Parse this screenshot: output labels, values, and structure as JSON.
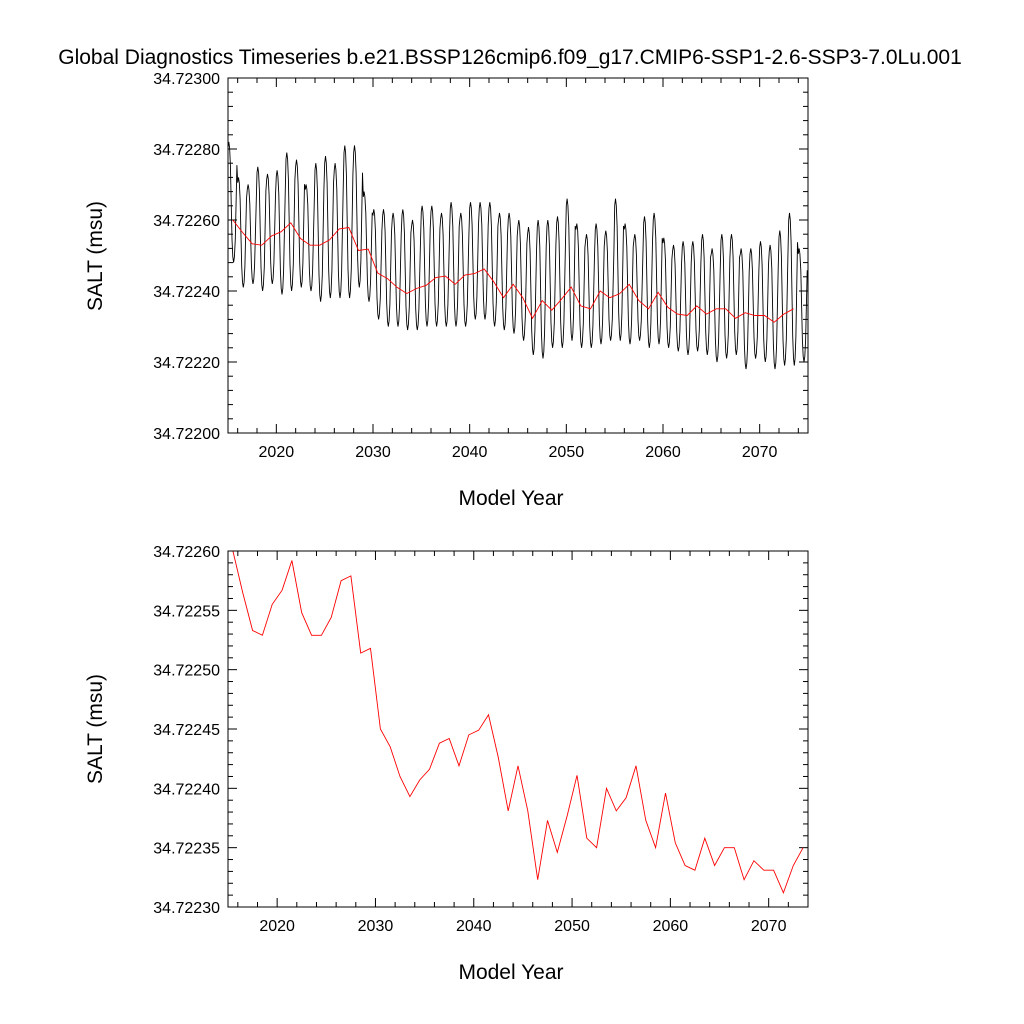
{
  "figure": {
    "title": "Global Diagnostics Timeseries b.e21.BSSP126cmip6.f09_g17.CMIP6-SSP1-2.6-SSP3-7.0Lu.001"
  },
  "colors": {
    "monthly": "#000000",
    "annual": "#ff0000",
    "axis": "#000000"
  },
  "chart_data": [
    {
      "type": "line",
      "title": "Global Diagnostics Timeseries b.e21.BSSP126cmip6.f09_g17.CMIP6-SSP1-2.6-SSP3-7.0Lu.001",
      "xlabel": "Model Year",
      "ylabel": "SALT (msu)",
      "xlim": [
        2015,
        2075
      ],
      "ylim": [
        34.722,
        34.723
      ],
      "x_ticks": [
        "2020",
        "2030",
        "2040",
        "2050",
        "2060",
        "2070"
      ],
      "y_ticks": [
        "34.72200",
        "34.72220",
        "34.72240",
        "34.72260",
        "34.72280",
        "34.72300"
      ],
      "grid": false,
      "series": [
        {
          "color": "#000000",
          "style": "monthly seasonal cycle",
          "x": [
            2015.0,
            2016.0,
            2017.0,
            2018.0,
            2019.0,
            2020.0,
            2021.0,
            2022.0,
            2023.0,
            2024.0,
            2025.0,
            2026.0,
            2027.0,
            2028.0,
            2029.0,
            2030.0,
            2031.0,
            2032.0,
            2033.0,
            2034.0,
            2035.0,
            2036.0,
            2037.0,
            2038.0,
            2039.0,
            2040.0,
            2041.0,
            2042.0,
            2043.0,
            2044.0,
            2045.0,
            2046.0,
            2047.0,
            2048.0,
            2049.0,
            2050.0,
            2051.0,
            2052.0,
            2053.0,
            2054.0,
            2055.0,
            2056.0,
            2057.0,
            2058.0,
            2059.0,
            2060.0,
            2061.0,
            2062.0,
            2063.0,
            2064.0,
            2065.0,
            2066.0,
            2067.0,
            2068.0,
            2069.0,
            2070.0,
            2071.0,
            2072.0,
            2073.0,
            2074.0
          ],
          "max": [
            34.72282,
            34.72272,
            34.7227,
            34.72275,
            34.72273,
            34.72274,
            34.72279,
            34.72277,
            34.7227,
            34.72276,
            34.72278,
            34.72276,
            34.72281,
            34.72281,
            34.72268,
            34.72263,
            34.72263,
            34.72262,
            34.72263,
            34.7226,
            34.72264,
            34.72264,
            34.72262,
            34.72265,
            34.72262,
            34.72265,
            34.72265,
            34.72265,
            34.72262,
            34.72262,
            34.7226,
            34.72258,
            34.7226,
            34.7226,
            34.72261,
            34.72266,
            34.72259,
            34.72256,
            34.72259,
            34.72257,
            34.72266,
            34.72259,
            34.72256,
            34.72261,
            34.72262,
            34.72255,
            34.72253,
            34.72254,
            34.72254,
            34.72256,
            34.72252,
            34.72256,
            34.72256,
            34.72252,
            34.72252,
            34.72254,
            34.72253,
            34.72257,
            34.72262,
            34.72252
          ],
          "min": [
            34.72248,
            34.72241,
            34.72242,
            34.7224,
            34.72242,
            34.72239,
            34.7224,
            34.72241,
            34.7224,
            34.72237,
            34.72238,
            34.72238,
            34.72238,
            34.72241,
            34.72237,
            34.72232,
            34.7223,
            34.7223,
            34.72229,
            34.72229,
            34.7223,
            34.7223,
            34.7223,
            34.7223,
            34.7223,
            34.72232,
            34.72232,
            34.7223,
            34.72229,
            34.72228,
            34.72226,
            34.72222,
            34.72221,
            34.72224,
            34.72224,
            34.72226,
            34.72224,
            34.72224,
            34.72225,
            34.72226,
            34.72226,
            34.72225,
            34.72226,
            34.72224,
            34.72225,
            34.72224,
            34.72223,
            34.72222,
            34.72223,
            34.72222,
            34.7222,
            34.72221,
            34.72222,
            34.72218,
            34.72221,
            34.7222,
            34.72218,
            34.72219,
            34.72219,
            34.7222
          ]
        },
        {
          "color": "#ff0000",
          "style": "annual mean",
          "x": [
            2015.5,
            2016.5,
            2017.5,
            2018.5,
            2019.5,
            2020.5,
            2021.5,
            2022.5,
            2023.5,
            2024.5,
            2025.5,
            2026.5,
            2027.5,
            2028.5,
            2029.5,
            2030.5,
            2031.5,
            2032.5,
            2033.5,
            2034.5,
            2035.5,
            2036.5,
            2037.5,
            2038.5,
            2039.5,
            2040.5,
            2041.5,
            2042.5,
            2043.5,
            2044.5,
            2045.5,
            2046.5,
            2047.5,
            2048.5,
            2049.5,
            2050.5,
            2051.5,
            2052.5,
            2053.5,
            2054.5,
            2055.5,
            2056.5,
            2057.5,
            2058.5,
            2059.5,
            2060.5,
            2061.5,
            2062.5,
            2063.5,
            2064.5,
            2065.5,
            2066.5,
            2067.5,
            2068.5,
            2069.5,
            2070.5,
            2071.5,
            2072.5,
            2073.5
          ],
          "y": [
            34.7226,
            34.722565,
            34.722533,
            34.722529,
            34.722555,
            34.722567,
            34.722592,
            34.722548,
            34.722529,
            34.722529,
            34.722544,
            34.722575,
            34.722579,
            34.722514,
            34.722518,
            34.72245,
            34.722435,
            34.72241,
            34.722393,
            34.722407,
            34.722416,
            34.722438,
            34.722442,
            34.722419,
            34.722445,
            34.722449,
            34.722462,
            34.722426,
            34.722381,
            34.722419,
            34.722381,
            34.722323,
            34.722373,
            34.722346,
            34.722377,
            34.722411,
            34.722358,
            34.72235,
            34.7224,
            34.722381,
            34.722392,
            34.722419,
            34.722373,
            34.72235,
            34.722396,
            34.722354,
            34.722335,
            34.722331,
            34.722358,
            34.722335,
            34.72235,
            34.72235,
            34.722323,
            34.722339,
            34.722331,
            34.722331,
            34.722312,
            34.722335,
            34.72235
          ]
        }
      ]
    },
    {
      "type": "line",
      "xlabel": "Model Year",
      "ylabel": "SALT (msu)",
      "xlim": [
        2015,
        2074
      ],
      "ylim": [
        34.7223,
        34.7226
      ],
      "x_ticks": [
        "2020",
        "2030",
        "2040",
        "2050",
        "2060",
        "2070"
      ],
      "y_ticks": [
        "34.72230",
        "34.72235",
        "34.72240",
        "34.72245",
        "34.72250",
        "34.72255",
        "34.72260"
      ],
      "grid": false,
      "series": [
        {
          "color": "#ff0000",
          "style": "annual mean",
          "x": [
            2015.5,
            2016.5,
            2017.5,
            2018.5,
            2019.5,
            2020.5,
            2021.5,
            2022.5,
            2023.5,
            2024.5,
            2025.5,
            2026.5,
            2027.5,
            2028.5,
            2029.5,
            2030.5,
            2031.5,
            2032.5,
            2033.5,
            2034.5,
            2035.5,
            2036.5,
            2037.5,
            2038.5,
            2039.5,
            2040.5,
            2041.5,
            2042.5,
            2043.5,
            2044.5,
            2045.5,
            2046.5,
            2047.5,
            2048.5,
            2049.5,
            2050.5,
            2051.5,
            2052.5,
            2053.5,
            2054.5,
            2055.5,
            2056.5,
            2057.5,
            2058.5,
            2059.5,
            2060.5,
            2061.5,
            2062.5,
            2063.5,
            2064.5,
            2065.5,
            2066.5,
            2067.5,
            2068.5,
            2069.5,
            2070.5,
            2071.5,
            2072.5,
            2073.5
          ],
          "y": [
            34.7226,
            34.722565,
            34.722533,
            34.722529,
            34.722555,
            34.722567,
            34.722592,
            34.722548,
            34.722529,
            34.722529,
            34.722544,
            34.722575,
            34.722579,
            34.722514,
            34.722518,
            34.72245,
            34.722435,
            34.72241,
            34.722393,
            34.722407,
            34.722416,
            34.722438,
            34.722442,
            34.722419,
            34.722445,
            34.722449,
            34.722462,
            34.722426,
            34.722381,
            34.722419,
            34.722381,
            34.722323,
            34.722373,
            34.722346,
            34.722377,
            34.722411,
            34.722358,
            34.72235,
            34.7224,
            34.722381,
            34.722392,
            34.722419,
            34.722373,
            34.72235,
            34.722396,
            34.722354,
            34.722335,
            34.722331,
            34.722358,
            34.722335,
            34.72235,
            34.72235,
            34.722323,
            34.722339,
            34.722331,
            34.722331,
            34.722312,
            34.722335,
            34.72235
          ]
        }
      ]
    }
  ]
}
